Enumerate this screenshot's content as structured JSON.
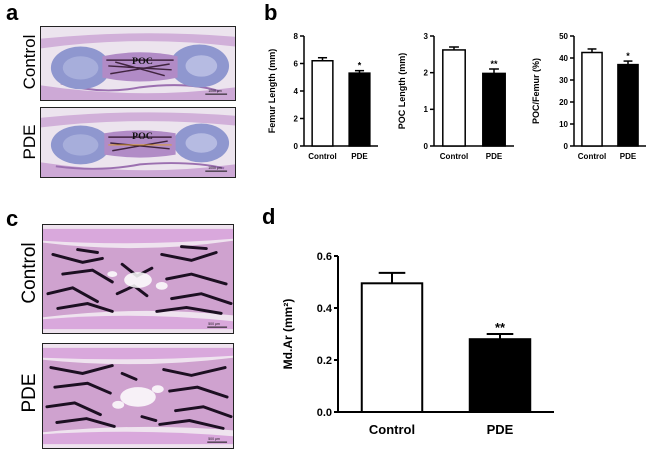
{
  "panels": {
    "a": "a",
    "b": "b",
    "c": "c",
    "d": "d"
  },
  "images": {
    "a_top": {
      "label": "Control",
      "annotation": "POC",
      "scale_bar": "1000 μm"
    },
    "a_bottom": {
      "label": "PDE",
      "annotation": "POC",
      "scale_bar": "1000 μm"
    },
    "c_top": {
      "label": "Control",
      "scale_bar": "500 μm"
    },
    "c_bottom": {
      "label": "PDE",
      "scale_bar": "500 μm"
    }
  },
  "colors": {
    "control_fill": "#ffffff",
    "pde_fill": "#000000",
    "cartilage": "#8f97cf",
    "tissue": "#c69ad0",
    "trabecular": "#1c0f22"
  },
  "chart_data": [
    {
      "type": "bar",
      "categories": [
        "Control",
        "PDE"
      ],
      "values": [
        6.2,
        5.3
      ],
      "errors": [
        0.22,
        0.18
      ],
      "significance": [
        "",
        "*"
      ],
      "ylabel": "Femur Length (mm)",
      "ylim": [
        0,
        8
      ],
      "yticks": [
        0,
        2,
        4,
        6,
        8
      ],
      "tick_labels": [
        "0",
        "2",
        "4",
        "6",
        "8"
      ]
    },
    {
      "type": "bar",
      "categories": [
        "Control",
        "PDE"
      ],
      "values": [
        2.62,
        1.98
      ],
      "errors": [
        0.08,
        0.12
      ],
      "significance": [
        "",
        "**"
      ],
      "ylabel": "POC Length (mm)",
      "ylim": [
        0,
        3
      ],
      "yticks": [
        0,
        1,
        2,
        3
      ],
      "tick_labels": [
        "0",
        "1",
        "2",
        "3"
      ]
    },
    {
      "type": "bar",
      "categories": [
        "Control",
        "PDE"
      ],
      "values": [
        42.5,
        37.0
      ],
      "errors": [
        1.6,
        1.6
      ],
      "significance": [
        "",
        "*"
      ],
      "ylabel": "POC/Femur (%)",
      "ylim": [
        0,
        50
      ],
      "yticks": [
        0,
        10,
        20,
        30,
        40,
        50
      ],
      "tick_labels": [
        "0",
        "10",
        "20",
        "30",
        "40",
        "50"
      ]
    },
    {
      "type": "bar",
      "categories": [
        "Control",
        "PDE"
      ],
      "values": [
        0.495,
        0.28
      ],
      "errors": [
        0.04,
        0.02
      ],
      "significance": [
        "",
        "**"
      ],
      "ylabel": "Md.Ar (mm²)",
      "ylim": [
        0,
        0.6
      ],
      "yticks": [
        0,
        0.2,
        0.4,
        0.6
      ],
      "tick_labels": [
        "0.0",
        "0.2",
        "0.4",
        "0.6"
      ]
    }
  ]
}
